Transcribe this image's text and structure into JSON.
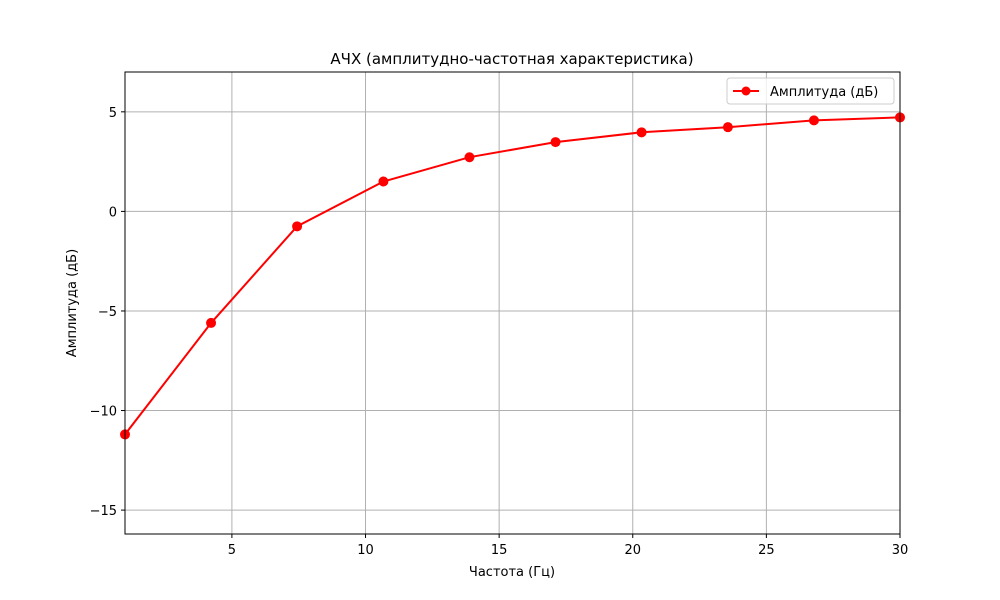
{
  "chart_data": {
    "type": "line",
    "title": "АЧХ (амплитудно-частотная характеристика)",
    "xlabel": "Частота (Гц)",
    "ylabel": "Амплитуда (дБ)",
    "xlim": [
      1,
      30
    ],
    "ylim": [
      -16.2,
      7
    ],
    "xticks": [
      5,
      10,
      15,
      20,
      25,
      30
    ],
    "xtick_labels": [
      "5",
      "10",
      "15",
      "20",
      "25",
      "30"
    ],
    "yticks": [
      -15,
      -10,
      -5,
      0,
      5
    ],
    "ytick_labels": [
      "−15",
      "−10",
      "−5",
      "0",
      "5"
    ],
    "grid": true,
    "legend_position": "top-right",
    "series": [
      {
        "name": "Амплитуда (дБ)",
        "color": "#ff0000",
        "marker": "circle",
        "x": [
          1.0,
          4.22,
          7.44,
          10.67,
          13.89,
          17.11,
          20.33,
          23.56,
          26.78,
          30.0
        ],
        "y": [
          -11.2,
          -5.6,
          -0.75,
          1.5,
          2.72,
          3.48,
          3.97,
          4.23,
          4.57,
          4.72
        ]
      }
    ]
  }
}
